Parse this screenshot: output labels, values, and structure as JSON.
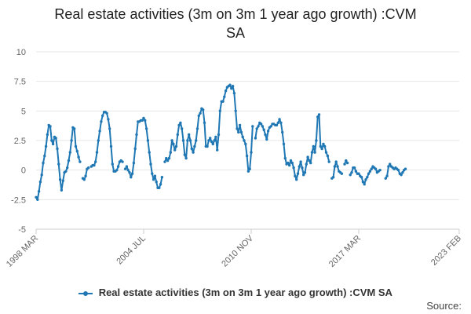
{
  "chart_data": {
    "type": "line",
    "title_lines": [
      "Real estate activities (3m on 3m 1 year ago growth) :CVM",
      "SA"
    ],
    "xlabel": "",
    "ylabel": "",
    "ylim": [
      -5,
      10
    ],
    "yticks": [
      "-5",
      "-2.5",
      "0",
      "2.5",
      "5",
      "7.5",
      "10"
    ],
    "ytick_values": [
      -5,
      -2.5,
      0,
      2.5,
      5,
      7.5,
      10
    ],
    "xlim": [
      "1998-03",
      "2023-02"
    ],
    "xticks": [
      {
        "label": "1998 MAR",
        "date": "1998-03"
      },
      {
        "label": "2004 JUL",
        "date": "2004-07"
      },
      {
        "label": "2010 NOV",
        "date": "2010-11"
      },
      {
        "label": "2017 MAR",
        "date": "2017-03"
      },
      {
        "label": "2023 FEB",
        "date": "2023-02"
      }
    ],
    "grid": true,
    "legend_position": "bottom",
    "series": [
      {
        "name": "Real estate activities (3m on 3m 1 year ago growth) :CVM SA",
        "color": "#1f77b4",
        "points": [
          [
            "1998-03",
            -2.3
          ],
          [
            "1998-04",
            -2.5
          ],
          [
            "1998-05",
            -1.8
          ],
          [
            "1998-06",
            -1.0
          ],
          [
            "1998-07",
            -0.4
          ],
          [
            "1998-08",
            0.6
          ],
          [
            "1998-09",
            1.2
          ],
          [
            "1998-10",
            2.0
          ],
          [
            "1998-11",
            3.0
          ],
          [
            "1998-12",
            3.8
          ],
          [
            "1999-01",
            3.7
          ],
          [
            "1999-02",
            2.5
          ],
          [
            "1999-03",
            2.2
          ],
          [
            "1999-04",
            2.8
          ],
          [
            "1999-05",
            2.7
          ],
          [
            "1999-06",
            1.8
          ],
          [
            "1999-07",
            0.5
          ],
          [
            "1999-08",
            -0.8
          ],
          [
            "1999-09",
            -1.7
          ],
          [
            "1999-10",
            -0.9
          ],
          [
            "1999-11",
            -0.2
          ],
          [
            "1999-12",
            -0.1
          ],
          [
            "2000-01",
            0.2
          ],
          [
            "2000-02",
            0.8
          ],
          [
            "2000-03",
            1.5
          ],
          [
            "2000-04",
            2.5
          ],
          [
            "2000-05",
            3.6
          ],
          [
            "2000-06",
            3.5
          ],
          [
            "2000-07",
            2.0
          ],
          [
            "2000-08",
            1.6
          ],
          [
            "2000-09",
            1.1
          ],
          [
            "2000-10",
            0.7
          ],
          null,
          [
            "2000-12",
            -0.7
          ],
          [
            "2001-01",
            -0.8
          ],
          [
            "2001-02",
            -0.5
          ],
          [
            "2001-03",
            0.1
          ],
          [
            "2001-04",
            0.2
          ],
          null,
          [
            "2001-06",
            0.3
          ],
          [
            "2001-07",
            0.4
          ],
          [
            "2001-08",
            0.4
          ],
          [
            "2001-09",
            0.7
          ],
          [
            "2001-10",
            1.5
          ],
          [
            "2001-11",
            2.5
          ],
          [
            "2001-12",
            3.3
          ],
          [
            "2002-01",
            4.1
          ],
          [
            "2002-02",
            4.6
          ],
          [
            "2002-03",
            4.9
          ],
          [
            "2002-04",
            4.9
          ],
          [
            "2002-05",
            4.8
          ],
          [
            "2002-06",
            4.3
          ],
          [
            "2002-07",
            3.5
          ],
          [
            "2002-08",
            2.0
          ],
          [
            "2002-09",
            0.5
          ],
          [
            "2002-10",
            -0.1
          ],
          [
            "2002-11",
            -0.1
          ],
          [
            "2002-12",
            0.0
          ],
          [
            "2003-01",
            0.3
          ],
          [
            "2003-02",
            0.7
          ],
          [
            "2003-03",
            0.8
          ],
          [
            "2003-04",
            0.7
          ],
          null,
          [
            "2003-06",
            0.1
          ],
          [
            "2003-07",
            0.3
          ],
          [
            "2003-08",
            0.0
          ],
          [
            "2003-09",
            -0.2
          ],
          [
            "2003-10",
            -0.6
          ],
          [
            "2003-11",
            -0.3
          ],
          [
            "2003-12",
            0.6
          ],
          [
            "2004-01",
            1.8
          ],
          [
            "2004-02",
            3.0
          ],
          [
            "2004-03",
            4.1
          ],
          [
            "2004-04",
            4.1
          ],
          [
            "2004-05",
            4.2
          ],
          [
            "2004-06",
            4.2
          ],
          [
            "2004-07",
            4.4
          ],
          [
            "2004-08",
            4.2
          ],
          [
            "2004-09",
            3.5
          ],
          [
            "2004-10",
            2.5
          ],
          [
            "2004-11",
            1.5
          ],
          [
            "2004-12",
            0.5
          ],
          [
            "2005-01",
            -0.3
          ],
          [
            "2005-02",
            -0.8
          ],
          [
            "2005-03",
            -0.5
          ],
          [
            "2005-04",
            -1.0
          ],
          [
            "2005-05",
            -1.5
          ],
          [
            "2005-06",
            -1.5
          ],
          [
            "2005-07",
            -1.2
          ],
          [
            "2005-08",
            -0.6
          ],
          null,
          [
            "2005-10",
            0.7
          ],
          [
            "2005-11",
            1.0
          ],
          [
            "2005-12",
            0.8
          ],
          [
            "2006-01",
            1.0
          ],
          [
            "2006-02",
            1.5
          ],
          [
            "2006-03",
            2.5
          ],
          [
            "2006-04",
            2.2
          ],
          [
            "2006-05",
            1.7
          ],
          [
            "2006-06",
            2.0
          ],
          [
            "2006-07",
            3.0
          ],
          [
            "2006-08",
            3.8
          ],
          [
            "2006-09",
            4.0
          ],
          [
            "2006-10",
            3.5
          ],
          [
            "2006-11",
            2.5
          ],
          [
            "2006-12",
            1.3
          ],
          [
            "2007-01",
            1.0
          ],
          [
            "2007-02",
            2.5
          ],
          [
            "2007-03",
            3.0
          ],
          [
            "2007-04",
            2.5
          ],
          [
            "2007-05",
            1.8
          ],
          [
            "2007-06",
            1.5
          ],
          [
            "2007-07",
            2.0
          ],
          [
            "2007-08",
            2.5
          ],
          [
            "2007-09",
            3.5
          ],
          [
            "2007-10",
            4.6
          ],
          [
            "2007-11",
            4.8
          ],
          [
            "2007-12",
            5.2
          ],
          [
            "2008-01",
            5.1
          ],
          [
            "2008-02",
            4.0
          ],
          [
            "2008-03",
            2.0
          ],
          [
            "2008-04",
            2.0
          ],
          [
            "2008-05",
            2.5
          ],
          [
            "2008-06",
            2.7
          ],
          [
            "2008-07",
            2.4
          ],
          [
            "2008-08",
            2.2
          ],
          [
            "2008-09",
            2.5
          ],
          [
            "2008-10",
            2.8
          ],
          [
            "2008-11",
            1.7
          ],
          [
            "2008-12",
            3.0
          ],
          [
            "2009-01",
            5.0
          ],
          [
            "2009-02",
            5.8
          ],
          [
            "2009-03",
            5.8
          ],
          [
            "2009-04",
            6.2
          ],
          [
            "2009-05",
            6.7
          ],
          [
            "2009-06",
            7.0
          ],
          [
            "2009-07",
            7.1
          ],
          [
            "2009-08",
            7.2
          ],
          [
            "2009-09",
            6.9
          ],
          [
            "2009-10",
            7.1
          ],
          [
            "2009-11",
            6.5
          ],
          [
            "2009-12",
            5.0
          ],
          [
            "2010-01",
            3.5
          ],
          [
            "2010-02",
            3.2
          ],
          [
            "2010-03",
            3.8
          ],
          [
            "2010-04",
            3.2
          ],
          [
            "2010-05",
            2.8
          ],
          [
            "2010-06",
            2.5
          ],
          [
            "2010-07",
            2.2
          ],
          [
            "2010-08",
            1.2
          ],
          [
            "2010-09",
            -0.1
          ],
          [
            "2010-10",
            0.1
          ],
          [
            "2010-11",
            1.5
          ],
          [
            "2010-12",
            3.7
          ],
          null,
          [
            "2011-02",
            2.7
          ],
          [
            "2011-03",
            3.5
          ],
          [
            "2011-04",
            3.7
          ],
          [
            "2011-05",
            4.0
          ],
          [
            "2011-06",
            3.9
          ],
          [
            "2011-07",
            3.7
          ],
          [
            "2011-08",
            3.4
          ],
          [
            "2011-09",
            3.0
          ],
          [
            "2011-10",
            2.6
          ],
          [
            "2011-11",
            3.3
          ],
          [
            "2011-12",
            3.6
          ],
          [
            "2012-01",
            3.7
          ],
          [
            "2012-02",
            3.9
          ],
          [
            "2012-03",
            3.9
          ],
          [
            "2012-04",
            3.8
          ],
          [
            "2012-05",
            3.8
          ],
          [
            "2012-06",
            4.0
          ],
          [
            "2012-07",
            4.3
          ],
          [
            "2012-08",
            4.0
          ],
          [
            "2012-09",
            3.2
          ],
          [
            "2012-10",
            2.2
          ],
          [
            "2012-11",
            1.0
          ],
          [
            "2012-12",
            0.5
          ],
          [
            "2013-01",
            0.6
          ],
          [
            "2013-02",
            0.4
          ],
          [
            "2013-03",
            0.8
          ],
          [
            "2013-04",
            0.6
          ],
          [
            "2013-05",
            0.2
          ],
          [
            "2013-06",
            -0.5
          ],
          [
            "2013-07",
            -0.8
          ],
          [
            "2013-08",
            -0.3
          ],
          [
            "2013-09",
            0.3
          ],
          [
            "2013-10",
            0.7
          ],
          [
            "2013-11",
            0.2
          ],
          [
            "2013-12",
            -0.4
          ],
          [
            "2014-01",
            -0.2
          ],
          [
            "2014-02",
            0.5
          ],
          [
            "2014-03",
            1.1
          ],
          [
            "2014-04",
            0.8
          ],
          [
            "2014-05",
            0.6
          ],
          [
            "2014-06",
            1.5
          ],
          [
            "2014-07",
            2.0
          ],
          [
            "2014-08",
            1.5
          ],
          [
            "2014-09",
            2.5
          ],
          [
            "2014-10",
            4.5
          ],
          [
            "2014-11",
            4.7
          ],
          [
            "2014-12",
            2.0
          ],
          [
            "2015-01",
            1.8
          ],
          [
            "2015-02",
            2.2
          ],
          [
            "2015-03",
            2.0
          ],
          [
            "2015-04",
            1.5
          ],
          [
            "2015-05",
            1.2
          ],
          [
            "2015-06",
            0.7
          ],
          null,
          [
            "2015-08",
            -0.7
          ],
          [
            "2015-09",
            -0.6
          ],
          [
            "2015-10",
            0.3
          ],
          [
            "2015-11",
            0.7
          ],
          [
            "2015-12",
            0.3
          ],
          [
            "2016-01",
            -0.1
          ],
          [
            "2016-02",
            -0.2
          ],
          [
            "2016-03",
            -0.3
          ],
          null,
          [
            "2016-05",
            0.5
          ],
          [
            "2016-06",
            0.8
          ],
          [
            "2016-07",
            0.6
          ],
          null,
          [
            "2016-09",
            -0.4
          ],
          [
            "2016-10",
            -0.2
          ],
          [
            "2016-11",
            0.2
          ],
          [
            "2016-12",
            0.2
          ],
          [
            "2017-01",
            -0.1
          ],
          [
            "2017-02",
            -0.3
          ],
          [
            "2017-03",
            -0.3
          ],
          [
            "2017-04",
            -0.5
          ],
          [
            "2017-05",
            -0.6
          ],
          [
            "2017-06",
            -1.0
          ],
          [
            "2017-07",
            -1.2
          ],
          [
            "2017-08",
            -0.8
          ],
          [
            "2017-09",
            -0.6
          ],
          [
            "2017-10",
            -0.3
          ],
          [
            "2017-11",
            -0.1
          ],
          [
            "2017-12",
            0.1
          ],
          [
            "2018-01",
            0.3
          ],
          [
            "2018-02",
            0.2
          ],
          [
            "2018-03",
            0.1
          ],
          [
            "2018-04",
            -0.2
          ],
          [
            "2018-05",
            -0.1
          ],
          [
            "2018-06",
            0.0
          ],
          null,
          [
            "2018-10",
            -0.7
          ],
          [
            "2018-11",
            -0.5
          ],
          [
            "2018-12",
            0.3
          ],
          [
            "2019-01",
            0.5
          ],
          [
            "2019-02",
            0.3
          ],
          [
            "2019-03",
            0.2
          ],
          [
            "2019-04",
            0.1
          ],
          [
            "2019-05",
            0.2
          ],
          [
            "2019-06",
            0.1
          ],
          [
            "2019-07",
            0.0
          ],
          [
            "2019-08",
            -0.3
          ],
          [
            "2019-09",
            -0.4
          ],
          [
            "2019-10",
            -0.2
          ],
          [
            "2019-11",
            0.0
          ],
          [
            "2019-12",
            0.1
          ]
        ]
      }
    ]
  },
  "legend": {
    "label": "Real estate activities (3m on 3m 1 year ago growth) :CVM SA"
  },
  "source": {
    "label": "Source:"
  }
}
